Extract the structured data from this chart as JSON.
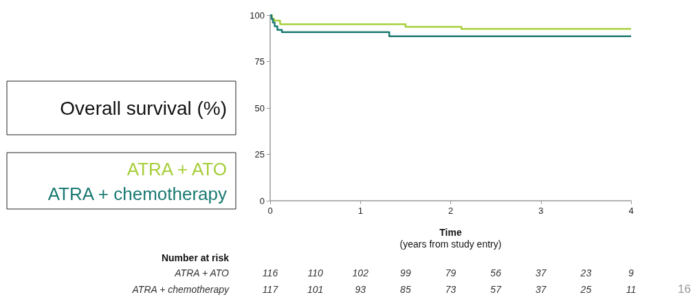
{
  "chart_data": {
    "type": "step",
    "ylabel": "Overall survival (%)",
    "xlabel": "Time\n(years from study entry)",
    "xlim": [
      0,
      4
    ],
    "xticks": [
      0,
      1,
      2,
      3,
      4
    ],
    "ylim": [
      0,
      100
    ],
    "yticks": [
      0,
      25,
      50,
      75,
      100
    ],
    "legend": "left",
    "grid": false,
    "marker": "none",
    "line_style": "solid",
    "series": [
      {
        "name": "ATRA + ATO",
        "color": "#a6ce39",
        "x": [
          0,
          0.02,
          0.045,
          0.11,
          1.5,
          2.12,
          4
        ],
        "values": [
          100,
          98,
          97,
          95.1,
          93.7,
          92.6,
          92.6
        ]
      },
      {
        "name": "ATRA + chemotherapy",
        "color": "#1a7a72",
        "x": [
          0,
          0.015,
          0.03,
          0.05,
          0.08,
          0.13,
          1.32,
          4
        ],
        "values": [
          100,
          98,
          96,
          94,
          92,
          90.8,
          88.6,
          88.6
        ]
      }
    ],
    "annotations": [
      "Number at risk",
      "116",
      "110",
      "102",
      "99",
      "79",
      "56",
      "37",
      "23",
      "9",
      "117",
      "101",
      "93",
      "85",
      "73",
      "57",
      "37",
      "25",
      "11",
      "16"
    ]
  }
}
